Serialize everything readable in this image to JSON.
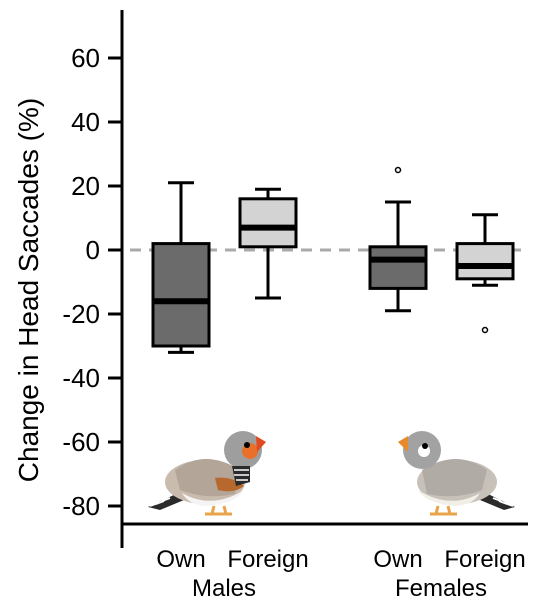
{
  "chart_data": {
    "type": "box",
    "ylabel": "Change in Head Saccades (%)",
    "ylim": [
      -85,
      75
    ],
    "yticks": [
      60,
      40,
      20,
      0,
      -20,
      -40,
      -60,
      -80
    ],
    "reference_line": 0,
    "categories": [
      "Own",
      "Foreign",
      "Own",
      "Foreign"
    ],
    "groups": [
      "Males",
      "Females"
    ],
    "boxes": [
      {
        "group": "Males",
        "label": "Own",
        "min": -32,
        "q1": -30,
        "median": -16,
        "q3": 2,
        "max": 21,
        "outliers": [],
        "color": "#6b6b6b"
      },
      {
        "group": "Males",
        "label": "Foreign",
        "min": -15,
        "q1": 1,
        "median": 7,
        "q3": 16,
        "max": 19,
        "outliers": [],
        "color": "#d3d3d3"
      },
      {
        "group": "Females",
        "label": "Own",
        "min": -19,
        "q1": -12,
        "median": -3,
        "q3": 1,
        "max": 15,
        "outliers": [
          25
        ],
        "color": "#6b6b6b"
      },
      {
        "group": "Females",
        "label": "Foreign",
        "min": -11,
        "q1": -9,
        "median": -5,
        "q3": 2,
        "max": 11,
        "outliers": [
          -25
        ],
        "color": "#d3d3d3"
      }
    ],
    "illustrations": [
      "male-zebra-finch",
      "female-zebra-finch"
    ]
  }
}
